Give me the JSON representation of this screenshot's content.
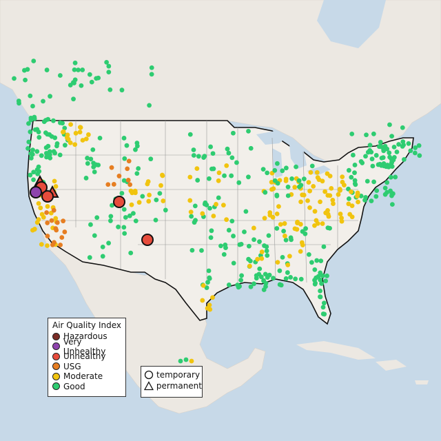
{
  "map": {
    "colors": {
      "ocean": "#c7d9e8",
      "land": "#ece8e2",
      "us_land": "#f2efea"
    }
  },
  "legend": {
    "title": "Air Quality Index",
    "categories": [
      {
        "label": "Hazardous",
        "color": "#7b2d26"
      },
      {
        "label": "Very Unhealthy",
        "color": "#8e44ad"
      },
      {
        "label": "Unhealthy",
        "color": "#e74c3c"
      },
      {
        "label": "USG",
        "color": "#e67e22"
      },
      {
        "label": "Moderate",
        "color": "#f1c40f"
      },
      {
        "label": "Good",
        "color": "#2ecc71"
      }
    ]
  },
  "monitor_legend": {
    "temporary": "temporary",
    "permanent": "permanent"
  }
}
